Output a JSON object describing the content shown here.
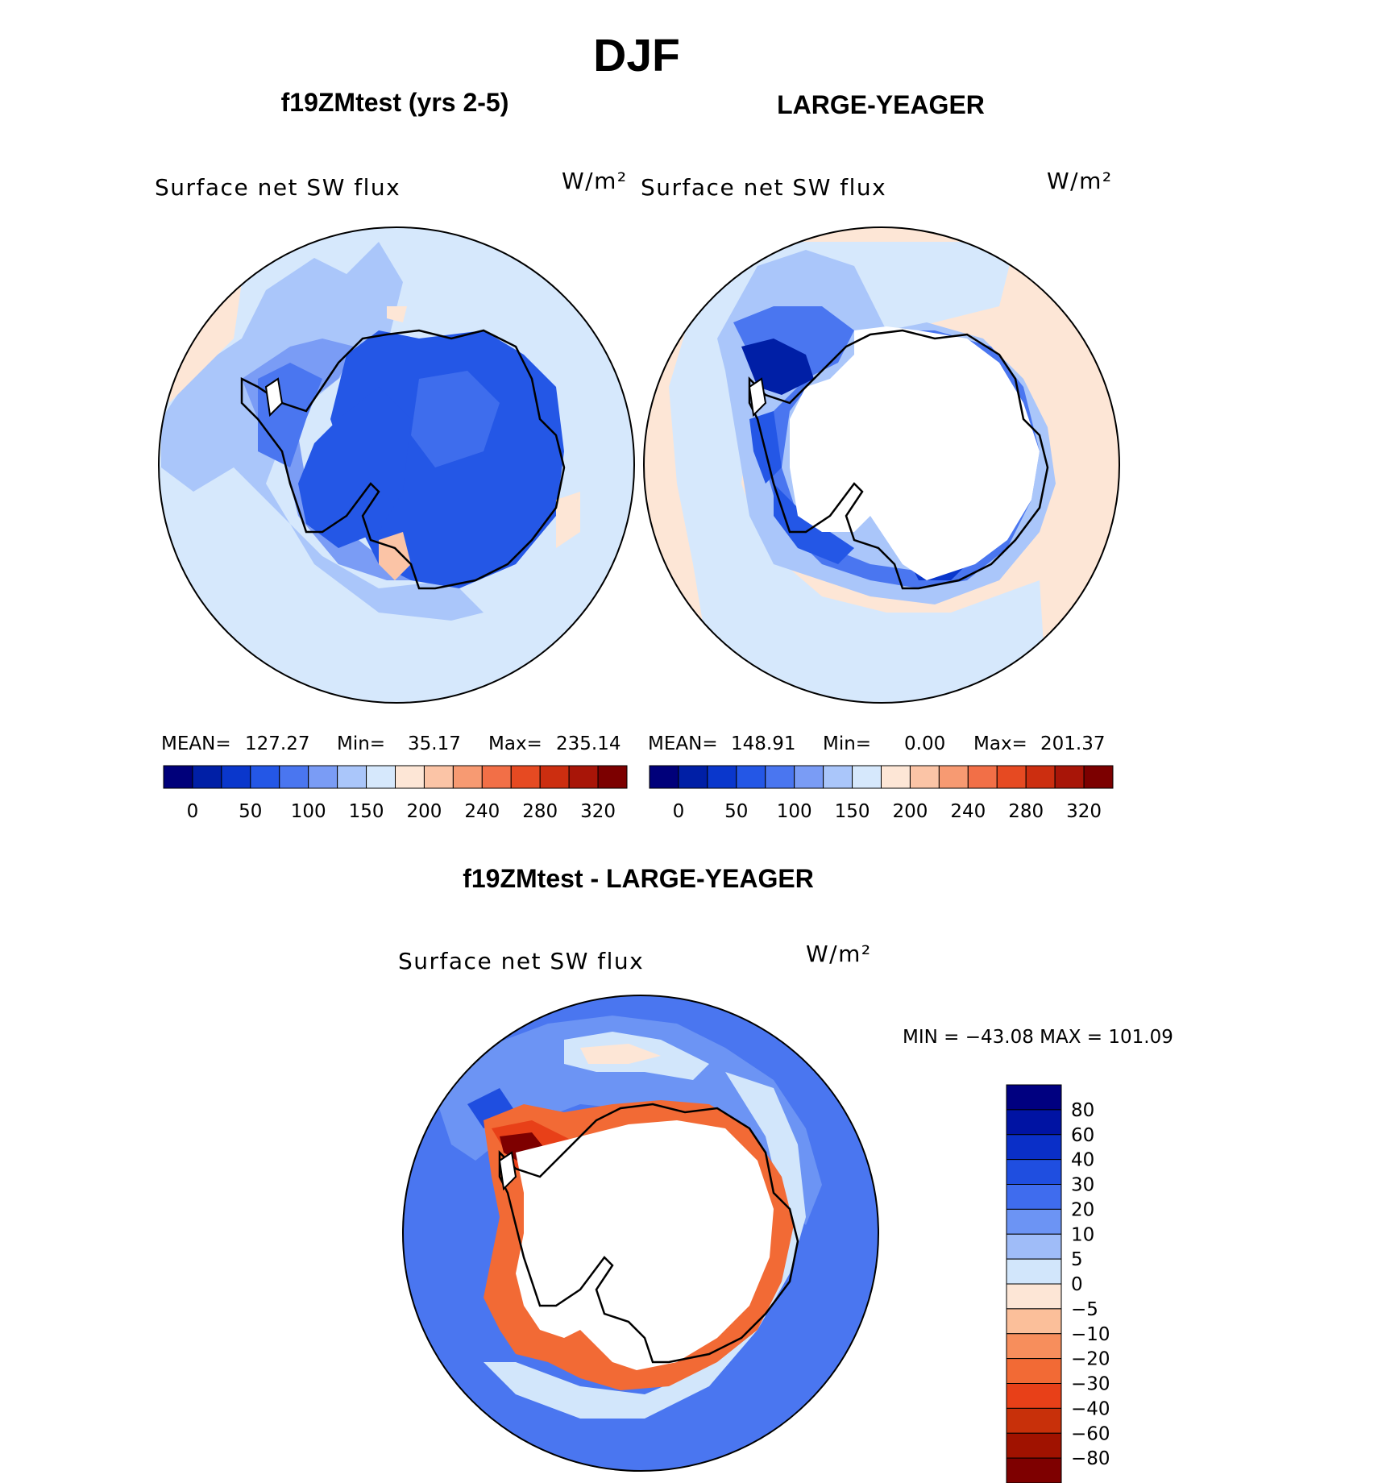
{
  "figure": {
    "season": "DJF",
    "colors": {
      "coast": "#000000",
      "land": "#ffffff"
    }
  },
  "panels": {
    "model": {
      "title": "f19ZMtest (yrs 2-5)",
      "variable": "Surface net SW flux",
      "units": "W/m²",
      "stats": {
        "mean_label": "MEAN=",
        "mean": "127.27",
        "min_label": "Min=",
        "min": "35.17",
        "max_label": "Max=",
        "max": "235.14"
      }
    },
    "obs": {
      "title": "LARGE-YEAGER",
      "variable": "Surface net SW flux",
      "units": "W/m²",
      "stats": {
        "mean_label": "MEAN=",
        "mean": "148.91",
        "min_label": "Min=",
        "min": "0.00",
        "max_label": "Max=",
        "max": "201.37"
      }
    },
    "diff": {
      "title": "f19ZMtest - LARGE-YEAGER",
      "variable": "Surface net SW flux",
      "units": "W/m²",
      "minmax": "MIN = −43.08 MAX = 101.09"
    }
  },
  "colorbars": {
    "abs": {
      "colors": [
        "#00007a",
        "#001fa6",
        "#0a37cc",
        "#2457e6",
        "#4a76f0",
        "#7a9cf5",
        "#aac6fa",
        "#d6e8fc",
        "#fde6d6",
        "#fbc4a6",
        "#f79a72",
        "#f26f47",
        "#e64a22",
        "#cc2e10",
        "#a81508",
        "#7c0000"
      ],
      "tick_labels": [
        "0",
        "50",
        "100",
        "150",
        "200",
        "240",
        "280",
        "320"
      ]
    },
    "diff": {
      "colors": [
        "#000080",
        "#0013a3",
        "#0a2fc8",
        "#1f4ee0",
        "#3f6cee",
        "#6c94f4",
        "#9fbcf8",
        "#d2e6fb",
        "#fde6d6",
        "#fbbf9a",
        "#f78e5c",
        "#f26a35",
        "#e84018",
        "#c8300a",
        "#a01200",
        "#7e0000"
      ],
      "tick_labels": [
        "80",
        "60",
        "40",
        "30",
        "20",
        "10",
        "5",
        "0",
        "−5",
        "−10",
        "−20",
        "−30",
        "−40",
        "−60",
        "−80"
      ]
    }
  }
}
